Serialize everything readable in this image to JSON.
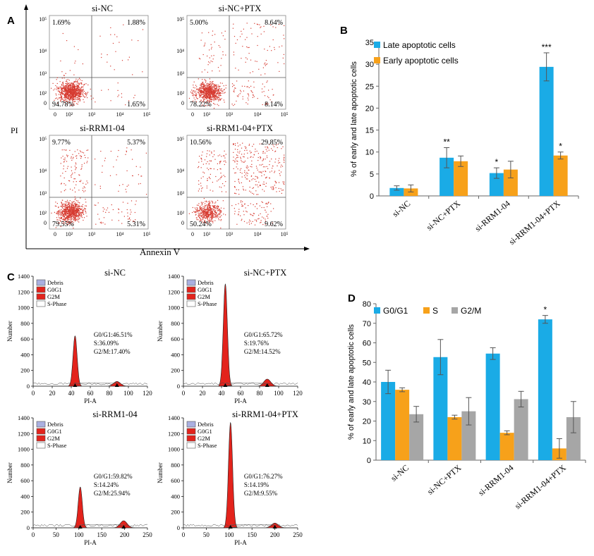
{
  "panel_letters": [
    "A",
    "B",
    "C",
    "D"
  ],
  "panel_a": {
    "y_label": "PI",
    "x_label": "Annexin V",
    "plots": [
      {
        "title": "si-NC",
        "q_ul": "1.69%",
        "q_ur": "1.88%",
        "q_ll": "94.78%",
        "q_lr": "1.65%",
        "y_ticks": [
          "10⁵",
          "10⁴",
          "10³",
          "10²",
          "0"
        ],
        "x_ticks": [
          "0",
          "10²",
          "10³",
          "10⁴",
          "10⁵"
        ]
      },
      {
        "title": "si-NC+PTX",
        "q_ul": "5.00%",
        "q_ur": "8.64%",
        "q_ll": "78.22%",
        "q_lr": "8.14%",
        "y_ticks": [
          "10⁵",
          "10⁴",
          "10³",
          "10²",
          "0"
        ],
        "x_ticks": [
          "0",
          "10²",
          "10³",
          "10⁴",
          "10⁵"
        ]
      },
      {
        "title": "si-RRM1-04",
        "q_ul": "9.77%",
        "q_ur": "5.37%",
        "q_ll": "79.55%",
        "q_lr": "5.31%",
        "y_ticks": [
          "10⁵",
          "10⁴",
          "10³",
          "10²",
          "0"
        ],
        "x_ticks": [
          "0",
          "10²",
          "10³",
          "10⁴",
          "10⁵"
        ]
      },
      {
        "title": "si-RRM1-04+PTX",
        "q_ul": "10.56%",
        "q_ur": "29.85%",
        "q_ll": "50.24%",
        "q_lr": "9.62%",
        "y_ticks": [
          "10⁵",
          "10⁴",
          "10³",
          "10²",
          "0"
        ],
        "x_ticks": [
          "0",
          "10²",
          "10³",
          "10⁴",
          "10⁵"
        ]
      }
    ]
  },
  "panel_c": {
    "legend_items": [
      "Debris",
      "G0G1",
      "G2M",
      "S-Phase"
    ],
    "y_label": "Number",
    "x_label": "PI-A",
    "y_ticks": [
      "0",
      "200",
      "400",
      "600",
      "800",
      "1000",
      "1200",
      "1400"
    ],
    "plots": [
      {
        "title": "si-NC",
        "x_ticks": [
          "0",
          "20",
          "40",
          "60",
          "80",
          "100",
          "120"
        ],
        "x_max": 120,
        "g1_pos": 44,
        "g2_pos": 88,
        "g1_peak": 640,
        "g2_peak": 60,
        "stat1": "G0/G1:46.51%",
        "stat2": "S:36.09%",
        "stat3": "G2/M:17.40%"
      },
      {
        "title": "si-NC+PTX",
        "x_ticks": [
          "0",
          "20",
          "40",
          "60",
          "80",
          "100",
          "120"
        ],
        "x_max": 120,
        "g1_pos": 44,
        "g2_pos": 88,
        "g1_peak": 1300,
        "g2_peak": 90,
        "stat1": "G0/G1:65.72%",
        "stat2": "S:19.76%",
        "stat3": "G2/M:14.52%"
      },
      {
        "title": "si-RRM1-04",
        "x_ticks": [
          "0",
          "50",
          "100",
          "150",
          "200",
          "250"
        ],
        "x_max": 250,
        "g1_pos": 103,
        "g2_pos": 198,
        "g1_peak": 520,
        "g2_peak": 90,
        "stat1": "G0/G1:59.82%",
        "stat2": "S:14.24%",
        "stat3": "G2/M:25.94%"
      },
      {
        "title": "si-RRM1-04+PTX",
        "x_ticks": [
          "0",
          "50",
          "100",
          "150",
          "200",
          "250"
        ],
        "x_max": 250,
        "g1_pos": 103,
        "g2_pos": 200,
        "g1_peak": 1340,
        "g2_peak": 60,
        "stat1": "G0/G1:76.27%",
        "stat2": "S:14.19%",
        "stat3": "G2/M:9.55%"
      }
    ]
  },
  "colors": {
    "blue": "#1aabe6",
    "orange": "#f7a11a",
    "gray": "#a6a6a6",
    "red": "#e3231c",
    "dot": "#d63a30"
  },
  "chart_data": [
    {
      "id": "B",
      "type": "bar",
      "ylabel": "% of early and late apoptotic cells",
      "ylim": [
        0,
        35
      ],
      "y_ticks": [
        0,
        5,
        10,
        15,
        20,
        25,
        30,
        35
      ],
      "categories": [
        "si-NC",
        "si-NC+PTX",
        "si-RRM1-04",
        "si-RRM1-04+PTX"
      ],
      "legend_position": "top-left",
      "series": [
        {
          "name": "Late apoptotic cells",
          "color": "#1aabe6",
          "values": [
            1.8,
            8.7,
            5.2,
            29.4
          ],
          "errors": [
            0.5,
            2.3,
            1.2,
            3.2
          ],
          "marks": [
            "",
            "**",
            "*",
            "***"
          ]
        },
        {
          "name": "Early apoptotic cells",
          "color": "#f7a11a",
          "values": [
            1.7,
            7.9,
            6.0,
            9.2
          ],
          "errors": [
            0.8,
            1.2,
            1.9,
            0.8
          ],
          "marks": [
            "",
            "",
            "",
            "*"
          ]
        }
      ]
    },
    {
      "id": "D",
      "type": "bar",
      "ylabel": "% of early and late apoptotic cells",
      "ylim": [
        0,
        80
      ],
      "y_ticks": [
        0,
        10,
        20,
        30,
        40,
        50,
        60,
        70,
        80
      ],
      "categories": [
        "si-NC",
        "si-NC+PTX",
        "si-RRM1-04",
        "si-RRM1-04+PTX"
      ],
      "legend_position": "top-left",
      "series": [
        {
          "name": "G0/G1",
          "color": "#1aabe6",
          "values": [
            40,
            52.7,
            54.5,
            72
          ],
          "errors": [
            6,
            9,
            3,
            2
          ],
          "marks": [
            "",
            "",
            "",
            "*"
          ]
        },
        {
          "name": "S",
          "color": "#f7a11a",
          "values": [
            36,
            22,
            14,
            6
          ],
          "errors": [
            1,
            1,
            1,
            5
          ],
          "marks": [
            "",
            "",
            "",
            ""
          ]
        },
        {
          "name": "G2/M",
          "color": "#a6a6a6",
          "values": [
            23.5,
            25,
            31.2,
            22
          ],
          "errors": [
            4,
            7,
            4,
            8
          ],
          "marks": [
            "",
            "",
            "",
            ""
          ]
        }
      ]
    }
  ]
}
